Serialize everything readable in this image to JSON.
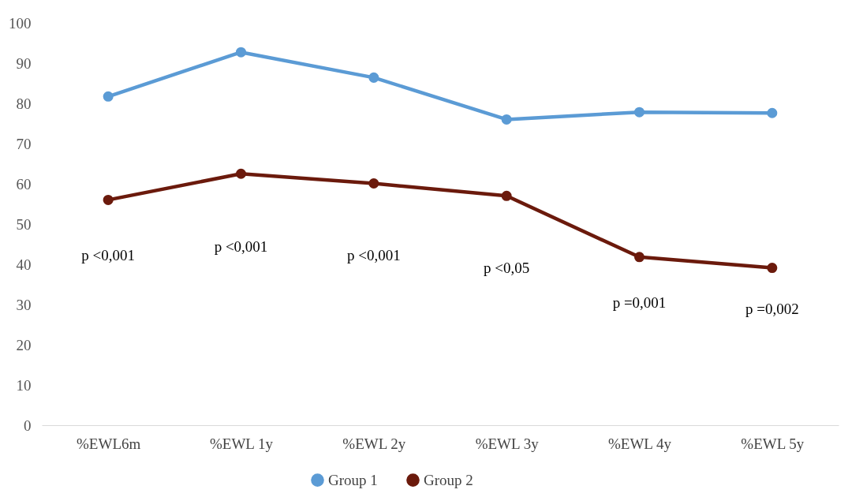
{
  "chart_data": {
    "type": "line",
    "categories": [
      "%EWL6m",
      "%EWL 1y",
      "%EWL 2y",
      "%EWL 3y",
      "%EWL 4y",
      "%EWL 5y"
    ],
    "series": [
      {
        "name": "Group 1",
        "color": "#5b9bd5",
        "values": [
          81.7,
          92.7,
          86.4,
          76.0,
          77.8,
          77.6
        ]
      },
      {
        "name": "Group 2",
        "color": "#6b1a0c",
        "values": [
          56.0,
          62.5,
          60.1,
          57.0,
          41.8,
          39.1
        ]
      }
    ],
    "ylim": [
      0,
      100
    ],
    "yticks": [
      0,
      10,
      20,
      30,
      40,
      50,
      60,
      70,
      80,
      90,
      100
    ],
    "grid": false,
    "legend": "bottom",
    "marker": "circle",
    "line_style": "solid",
    "annotations": [
      "p <0,001",
      "p <0,001",
      "p <0,001",
      "p <0,05",
      "p =0,001",
      "p =0,002"
    ]
  }
}
